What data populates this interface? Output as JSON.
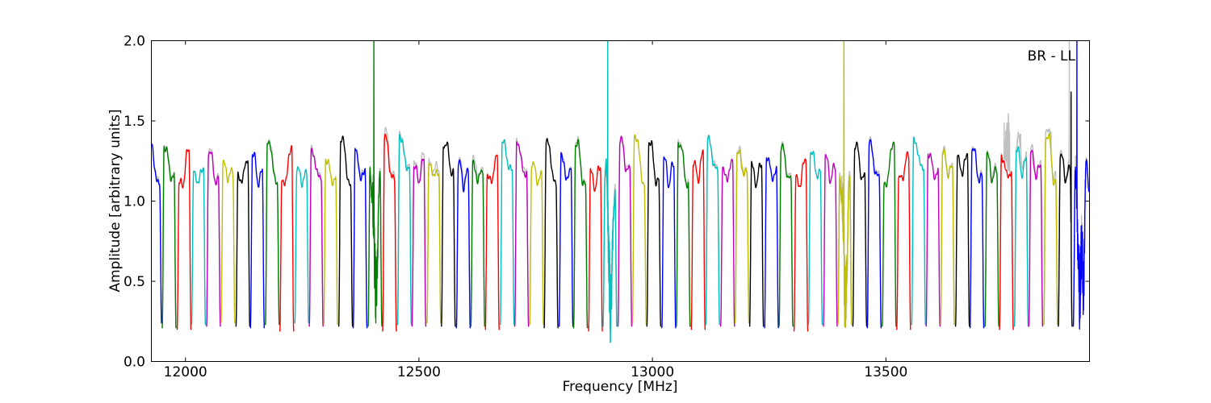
{
  "figure": {
    "background": "#ffffff"
  },
  "chart_data": {
    "type": "line",
    "title": "",
    "xlabel": "Frequency [MHz]",
    "ylabel": "Amplitude [arbitrary units]",
    "annotation": "BR - LL",
    "xlim": [
      11927,
      13936
    ],
    "ylim": [
      0.0,
      2.0
    ],
    "xtick_values": [
      12000,
      12500,
      13000,
      13500
    ],
    "xtick_labels": [
      "12000",
      "12500",
      "13000",
      "13500"
    ],
    "ytick_values": [
      0.0,
      0.5,
      1.0,
      1.5,
      2.0
    ],
    "ytick_labels": [
      "0.0",
      "0.5",
      "1.0",
      "1.5",
      "2.0"
    ],
    "grid": false,
    "legend_position": "none",
    "color_cycle": {
      "b": "#0000ff",
      "g": "#007f00",
      "r": "#ff0000",
      "c": "#00bfbf",
      "m": "#bf00bf",
      "y": "#bfbf00",
      "k": "#000000"
    },
    "gray_color": "#c0c0c0",
    "spw_half_width_mhz": 15.7,
    "windows_format": [
      "center_mhz",
      "color",
      "peak_left",
      "mid_dip",
      "peak_right",
      "edge_base",
      "gray_extra",
      "special(optional): rfi[dip,dip_t,dip2] | spike[t,amp] | gray_spike[t,amp] | gray_noise[t0,t1,max] | ext"
    ],
    "windows": [
      [
        11934,
        "b",
        1.37,
        1.08,
        1.13,
        0.24,
        0.02
      ],
      [
        11965,
        "g",
        1.34,
        1.11,
        1.16,
        0.21,
        0.02
      ],
      [
        11997,
        "r",
        1.12,
        1.04,
        1.31,
        0.2,
        0
      ],
      [
        12028,
        "c",
        1.18,
        1.09,
        1.21,
        0.23,
        0
      ],
      [
        12060,
        "m",
        1.31,
        1.1,
        1.13,
        0.22,
        0.02
      ],
      [
        12091,
        "y",
        1.23,
        1.12,
        1.19,
        0.24,
        0
      ],
      [
        12123,
        "k",
        1.16,
        1.08,
        1.26,
        0.22,
        0
      ],
      [
        12154,
        "b",
        1.3,
        1.06,
        1.18,
        0.21,
        0
      ],
      [
        12186,
        "g",
        1.35,
        1.15,
        1.12,
        0.23,
        0.03
      ],
      [
        12217,
        "r",
        1.14,
        1.05,
        1.33,
        0.19,
        0
      ],
      [
        12249,
        "c",
        1.2,
        1.1,
        1.17,
        0.24,
        0
      ],
      [
        12280,
        "m",
        1.3,
        1.13,
        1.16,
        0.22,
        0.02
      ],
      [
        12311,
        "y",
        1.26,
        1.09,
        1.14,
        0.23,
        0
      ],
      [
        12343,
        "k",
        1.37,
        1.14,
        1.1,
        0.22,
        0
      ],
      [
        12374,
        "b",
        1.32,
        1.07,
        1.2,
        0.21,
        0.03
      ],
      [
        12406,
        "g",
        1.3,
        0.45,
        1.25,
        0.22,
        0.05,
        {
          "rfi": [
            0.45,
            0.12
          ],
          "spike": [
            -0.16,
            2.1
          ]
        }
      ],
      [
        12437,
        "r",
        1.39,
        1.1,
        1.15,
        0.19,
        0.05
      ],
      [
        12469,
        "c",
        1.4,
        1.18,
        1.22,
        0.23,
        0.02
      ],
      [
        12500,
        "m",
        1.22,
        1.1,
        1.25,
        0.22,
        0.04
      ],
      [
        12532,
        "y",
        1.22,
        1.14,
        1.18,
        0.24,
        0.05
      ],
      [
        12563,
        "k",
        1.35,
        1.22,
        1.18,
        0.22,
        0
      ],
      [
        12595,
        "b",
        1.24,
        1.06,
        1.18,
        0.21,
        0.04
      ],
      [
        12626,
        "g",
        1.23,
        1.1,
        1.2,
        0.22,
        0.05
      ],
      [
        12657,
        "r",
        1.17,
        1.06,
        1.28,
        0.2,
        0
      ],
      [
        12689,
        "c",
        1.36,
        1.18,
        1.2,
        0.23,
        0
      ],
      [
        12720,
        "m",
        1.36,
        1.14,
        1.18,
        0.22,
        0.03
      ],
      [
        12752,
        "y",
        1.24,
        1.09,
        1.16,
        0.23,
        0
      ],
      [
        12783,
        "k",
        1.36,
        1.13,
        1.12,
        0.21,
        0
      ],
      [
        12815,
        "b",
        1.29,
        1.08,
        1.21,
        0.22,
        0.02
      ],
      [
        12846,
        "g",
        1.35,
        1.12,
        1.1,
        0.21,
        0.02
      ],
      [
        12878,
        "r",
        1.18,
        1.05,
        1.22,
        0.19,
        0
      ],
      [
        12909,
        "c",
        1.28,
        0.33,
        1.22,
        0.22,
        0.06,
        {
          "rfi": [
            0.33,
            0.1
          ],
          "spike": [
            -0.3,
            2.1
          ]
        }
      ],
      [
        12941,
        "m",
        1.38,
        1.15,
        1.2,
        0.22,
        0.02
      ],
      [
        12972,
        "y",
        1.39,
        1.16,
        1.12,
        0.23,
        0
      ],
      [
        13003,
        "k",
        1.37,
        1.1,
        1.13,
        0.22,
        0
      ],
      [
        13035,
        "b",
        1.26,
        1.08,
        1.23,
        0.21,
        0
      ],
      [
        13066,
        "g",
        1.35,
        1.14,
        1.11,
        0.22,
        0.02
      ],
      [
        13098,
        "r",
        1.25,
        1.1,
        1.29,
        0.2,
        0
      ],
      [
        13129,
        "c",
        1.38,
        1.17,
        1.21,
        0.23,
        0.02
      ],
      [
        13161,
        "m",
        1.21,
        1.09,
        1.26,
        0.22,
        0
      ],
      [
        13192,
        "y",
        1.3,
        1.15,
        1.18,
        0.24,
        0.03
      ],
      [
        13223,
        "k",
        1.22,
        1.08,
        1.24,
        0.22,
        0
      ],
      [
        13255,
        "b",
        1.28,
        1.1,
        1.19,
        0.21,
        0
      ],
      [
        13286,
        "g",
        1.33,
        1.12,
        1.14,
        0.22,
        0.02
      ],
      [
        13318,
        "r",
        1.15,
        1.04,
        1.27,
        0.19,
        0
      ],
      [
        13349,
        "c",
        1.31,
        1.13,
        1.18,
        0.23,
        0
      ],
      [
        13381,
        "m",
        1.27,
        1.1,
        1.22,
        0.22,
        0
      ],
      [
        13412,
        "y",
        1.3,
        0.38,
        1.25,
        0.23,
        0.06,
        {
          "rfi": [
            0.38,
            0.1
          ],
          "spike": [
            -0.12,
            2.1
          ]
        }
      ],
      [
        13444,
        "k",
        1.35,
        1.12,
        1.15,
        0.22,
        0
      ],
      [
        13475,
        "b",
        1.36,
        1.11,
        1.17,
        0.21,
        0.02
      ],
      [
        13507,
        "g",
        1.12,
        1.08,
        1.36,
        0.22,
        0
      ],
      [
        13538,
        "r",
        1.15,
        1.1,
        1.28,
        0.2,
        0
      ],
      [
        13570,
        "c",
        1.37,
        1.2,
        1.22,
        0.23,
        0
      ],
      [
        13601,
        "m",
        1.3,
        1.12,
        1.18,
        0.22,
        0
      ],
      [
        13632,
        "y",
        1.3,
        1.13,
        1.21,
        0.23,
        0.02
      ],
      [
        13664,
        "k",
        1.28,
        1.14,
        1.3,
        0.22,
        0
      ],
      [
        13695,
        "b",
        1.33,
        1.1,
        1.15,
        0.21,
        0.02
      ],
      [
        13727,
        "g",
        1.28,
        1.09,
        1.2,
        0.22,
        0.03
      ],
      [
        13758,
        "r",
        1.27,
        1.12,
        1.18,
        0.2,
        0.06,
        {
          "gray_noise": [
            -0.35,
            0.45,
            1.57
          ]
        }
      ],
      [
        13790,
        "c",
        1.33,
        1.13,
        1.25,
        0.22,
        0.1,
        {
          "gray_noise": [
            -0.6,
            -0.05,
            1.43
          ]
        }
      ],
      [
        13821,
        "m",
        1.3,
        1.11,
        1.23,
        0.22,
        0.04
      ],
      [
        13853,
        "y",
        1.4,
        1.18,
        1.12,
        0.23,
        0.05,
        {
          "gray_noise": [
            -0.45,
            0.05,
            1.45
          ]
        }
      ],
      [
        13884,
        "k",
        1.28,
        1.1,
        1.2,
        0.22,
        0.03,
        {
          "spike": [
            0.8,
            1.68
          ],
          "gray_spike": [
            0.56,
            2.1
          ]
        }
      ],
      [
        13916,
        "b",
        1.25,
        0.4,
        1.25,
        0.22,
        0.06,
        {
          "rfi": [
            0.4,
            -0.05,
            0.38
          ],
          "spike": [
            -0.44,
            2.1
          ],
          "ext": true
        }
      ]
    ]
  }
}
